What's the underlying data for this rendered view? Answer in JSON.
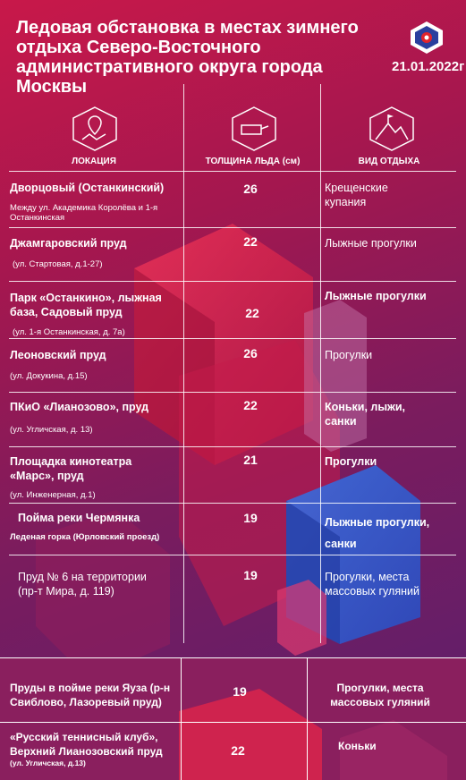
{
  "header": {
    "title": "Ледовая обстановка в местах зимнего отдыха Северо-Восточного административного округа города Москвы",
    "date": "21.01.2022г"
  },
  "columns": {
    "location": "ЛОКАЦИЯ",
    "thickness": "ТОЛЩИНА ЛЬДА (см)",
    "activity": "ВИД ОТДЫХА"
  },
  "rows": [
    {
      "name": "Дворцовый (Останкинский)",
      "address": "Между ул. Академика Королёва и 1-я Останкинская",
      "thickness": "26",
      "activity": "Крещенские купания"
    },
    {
      "name": "Джамгаровский пруд",
      "address": "(ул. Стартовая, д.1-27)",
      "thickness": "22",
      "activity": "Лыжные прогулки"
    },
    {
      "name": "Парк «Останкино», лыжная база, Садовый пруд",
      "address": "(ул. 1-я Останкинская, д. 7а)",
      "thickness": "22",
      "activity": "Лыжные прогулки"
    },
    {
      "name": "Леоновский пруд",
      "address": "(ул. Докукина, д.15)",
      "thickness": "26",
      "activity": "Прогулки"
    },
    {
      "name": "ПКиО «Лианозово», пруд",
      "address": "(ул. Угличская, д. 13)",
      "thickness": "22",
      "activity": "Коньки, лыжи, санки"
    },
    {
      "name": "Площадка кинотеатра «Марс», пруд",
      "address": "(ул. Инженерная, д.1)",
      "thickness": "21",
      "activity": "Прогулки"
    },
    {
      "name": "Пойма реки Чермянка",
      "address": "Леденая горка (Юрловский проезд)",
      "thickness": "19",
      "activity": "Лыжные прогулки, санки"
    },
    {
      "name": "Пруд № 6 на территории (пр-т Мира, д. 119)",
      "address": "",
      "thickness": "19",
      "activity": "Прогулки, места массовых гуляний"
    },
    {
      "name": "Пруды в пойме реки Яуза (р-н Свиблово, Лазоревый пруд)",
      "address": "",
      "thickness": "19",
      "activity": "Прогулки, места массовых гуляний"
    },
    {
      "name": "«Русский теннисный клуб», Верхний Лианозовский пруд",
      "address": "(ул. Угличская, д.13)",
      "thickness": "22",
      "activity": "Коньки"
    }
  ]
}
